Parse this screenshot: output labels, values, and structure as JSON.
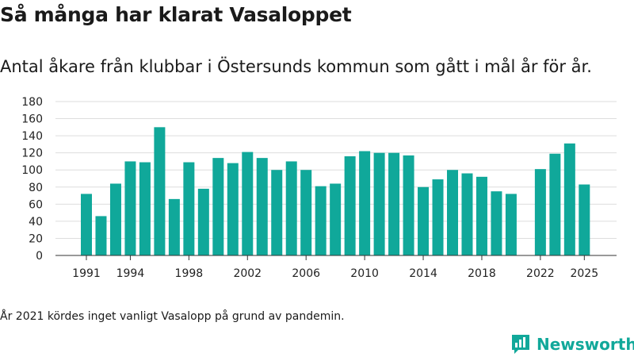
{
  "title": "Så många har klarat Vasaloppet",
  "subtitle": "Antal åkare från klubbar i Östersunds kommun som gått i mål år för år.",
  "footnote": "År 2021 kördes inget vanligt Vasalopp på grund av pandemin.",
  "brand": {
    "name": "Newsworthy",
    "logo_icon": "newsworthy-logo-icon"
  },
  "colors": {
    "bar": "#10a89a",
    "grid": "#dddddd",
    "axis": "#333333",
    "brand": "#11a89a"
  },
  "chart_data": {
    "type": "bar",
    "title": "Så många har klarat Vasaloppet",
    "xlabel": "",
    "ylabel": "",
    "ylim": [
      0,
      180
    ],
    "yticks": [
      0,
      20,
      40,
      60,
      80,
      100,
      120,
      140,
      160,
      180
    ],
    "xticks": [
      1991,
      1994,
      1998,
      2002,
      2006,
      2010,
      2014,
      2018,
      2022,
      2025
    ],
    "categories": [
      1991,
      1992,
      1993,
      1994,
      1995,
      1996,
      1997,
      1998,
      1999,
      2000,
      2001,
      2002,
      2003,
      2004,
      2005,
      2006,
      2007,
      2008,
      2009,
      2010,
      2011,
      2012,
      2013,
      2014,
      2015,
      2016,
      2017,
      2018,
      2019,
      2020,
      2021,
      2022,
      2023,
      2024,
      2025
    ],
    "values": [
      72,
      46,
      84,
      110,
      109,
      150,
      66,
      109,
      78,
      114,
      108,
      121,
      114,
      100,
      110,
      100,
      81,
      84,
      116,
      122,
      120,
      120,
      117,
      80,
      89,
      100,
      96,
      92,
      75,
      72,
      null,
      101,
      119,
      131,
      83
    ],
    "grid": true
  }
}
